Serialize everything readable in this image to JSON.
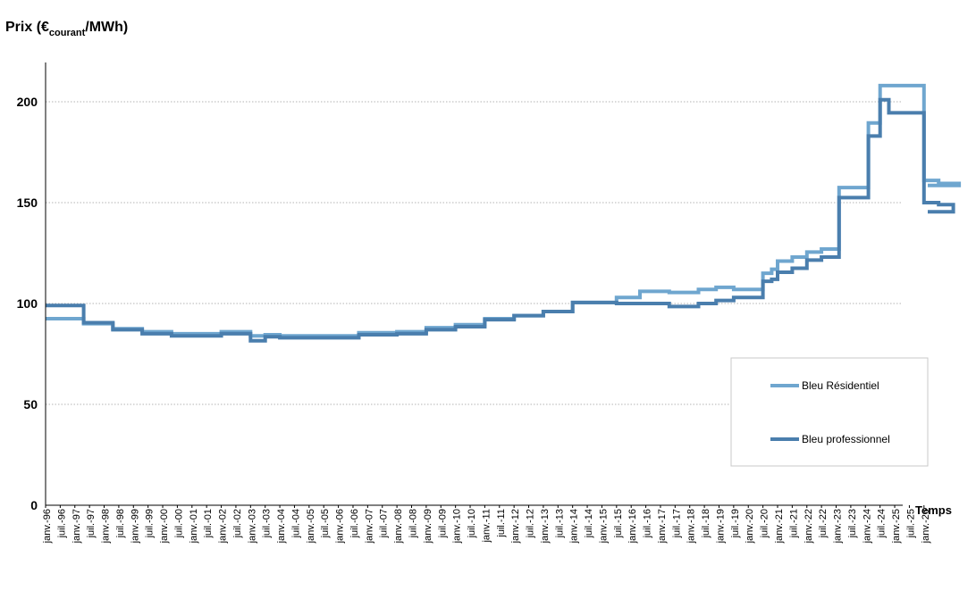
{
  "chart_data": {
    "type": "line",
    "step": true,
    "ylabel": {
      "main": "Prix (€",
      "sub": "courant",
      "tail": "/MWh)"
    },
    "xlabel": "Temps",
    "ylim": [
      0,
      220
    ],
    "yticks": [
      0,
      50,
      100,
      150,
      200
    ],
    "grid": "horizontal-dotted",
    "xlim": [
      1996.0,
      2026.5
    ],
    "xtick_labels": [
      "janv.-96",
      "juil.-96",
      "janv.-97",
      "juil.-97",
      "janv.-98",
      "juil.-98",
      "janv.-99",
      "juil.-99",
      "janv.-00",
      "juil.-00",
      "janv.-01",
      "juil.-01",
      "janv.-02",
      "juil.-02",
      "janv.-03",
      "juil.-03",
      "janv.-04",
      "juil.-04",
      "janv.-05",
      "juil.-05",
      "janv.-06",
      "juil.-06",
      "janv.-07",
      "juil.-07",
      "janv.-08",
      "juil.-08",
      "janv.-09",
      "juil.-09",
      "janv.-10",
      "juil.-10",
      "janv.-11",
      "juil.-11",
      "janv.-12",
      "juil.-12",
      "janv.-13",
      "juil.-13",
      "janv.-14",
      "juil.-14",
      "janv.-15",
      "juil.-15",
      "janv.-16",
      "juil.-16",
      "janv.-17",
      "juil.-17",
      "janv.-18",
      "juil.-18",
      "janv.-19",
      "juil.-19",
      "janv.-20",
      "juil.-20",
      "janv.-21",
      "juil.-21",
      "janv.-22",
      "juil.-22",
      "janv.-23",
      "juil.-23",
      "janv.-24",
      "juil.-24",
      "janv.-25",
      "juil.-25",
      "janv.-26"
    ],
    "legend": {
      "placement": "right-inside"
    },
    "series": [
      {
        "name": "Bleu Résidentiel",
        "color": "#6fa6cf",
        "points": [
          [
            1996.0,
            92.5
          ],
          [
            1997.3,
            90
          ],
          [
            1998.3,
            87.5
          ],
          [
            1999.3,
            86
          ],
          [
            2000.3,
            85
          ],
          [
            2002.0,
            86
          ],
          [
            2003.0,
            84
          ],
          [
            2003.5,
            84.5
          ],
          [
            2004.0,
            84
          ],
          [
            2006.7,
            85.5
          ],
          [
            2008.0,
            86
          ],
          [
            2009.0,
            88
          ],
          [
            2010.0,
            89.5
          ],
          [
            2011.0,
            92.5
          ],
          [
            2012.0,
            94
          ],
          [
            2013.0,
            96
          ],
          [
            2014.0,
            100.5
          ],
          [
            2015.5,
            103
          ],
          [
            2016.3,
            106
          ],
          [
            2017.3,
            105.5
          ],
          [
            2018.3,
            107
          ],
          [
            2018.9,
            108
          ],
          [
            2019.5,
            107
          ],
          [
            2020.5,
            115
          ],
          [
            2020.8,
            117
          ],
          [
            2021.0,
            121
          ],
          [
            2021.5,
            123
          ],
          [
            2022.0,
            125.5
          ],
          [
            2022.5,
            127
          ],
          [
            2023.1,
            157.5
          ],
          [
            2024.1,
            189.5
          ],
          [
            2024.5,
            208
          ],
          [
            2026.0,
            161
          ],
          [
            2026.5,
            159.5
          ],
          [
            2027.2,
            158.5
          ]
        ],
        "end_x": 2027.3
      },
      {
        "name": "Bleu professionnel",
        "color": "#4a7ead",
        "points": [
          [
            1996.0,
            99
          ],
          [
            1997.3,
            90.5
          ],
          [
            1998.3,
            87
          ],
          [
            1999.3,
            85
          ],
          [
            2000.3,
            84
          ],
          [
            2002.0,
            85
          ],
          [
            2003.0,
            81.5
          ],
          [
            2003.5,
            83.5
          ],
          [
            2004.0,
            83
          ],
          [
            2006.7,
            84.5
          ],
          [
            2008.0,
            85
          ],
          [
            2009.0,
            87
          ],
          [
            2010.0,
            88.5
          ],
          [
            2011.0,
            92
          ],
          [
            2012.0,
            94
          ],
          [
            2013.0,
            96
          ],
          [
            2014.0,
            100.5
          ],
          [
            2015.5,
            100
          ],
          [
            2016.3,
            100
          ],
          [
            2017.3,
            98.5
          ],
          [
            2018.3,
            100
          ],
          [
            2018.9,
            101.5
          ],
          [
            2019.5,
            103
          ],
          [
            2020.5,
            111
          ],
          [
            2020.8,
            112
          ],
          [
            2021.0,
            115.5
          ],
          [
            2021.5,
            117.5
          ],
          [
            2022.0,
            121.5
          ],
          [
            2022.5,
            123
          ],
          [
            2023.1,
            152.5
          ],
          [
            2024.1,
            183
          ],
          [
            2024.5,
            201
          ],
          [
            2024.8,
            194.5
          ],
          [
            2026.0,
            150
          ],
          [
            2026.5,
            149
          ],
          [
            2027.0,
            145.5
          ]
        ],
        "end_x": 2027.3
      }
    ]
  }
}
